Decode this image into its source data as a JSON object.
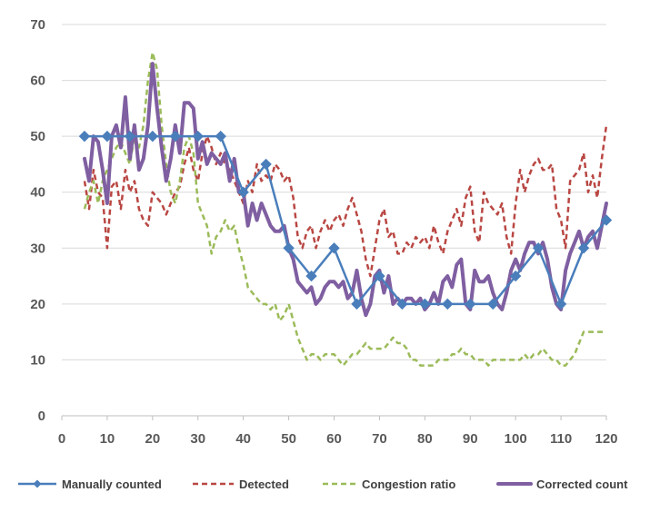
{
  "chart_data": {
    "type": "line",
    "title": "",
    "xlabel": "",
    "ylabel": "",
    "xlim": [
      0,
      120
    ],
    "ylim": [
      0,
      70
    ],
    "x_ticks": [
      0,
      10,
      20,
      30,
      40,
      50,
      60,
      70,
      80,
      90,
      100,
      110,
      120
    ],
    "y_ticks": [
      0,
      10,
      20,
      30,
      40,
      50,
      60,
      70
    ],
    "grid": "horizontal",
    "legend_position": "bottom",
    "series": [
      {
        "name": "Manually counted",
        "color": "#4a7ebb",
        "style": "solid-diamond-markers",
        "x": [
          5,
          10,
          15,
          20,
          25,
          30,
          35,
          40,
          45,
          50,
          55,
          60,
          65,
          70,
          75,
          80,
          85,
          90,
          95,
          100,
          105,
          110,
          115,
          120
        ],
        "y": [
          50,
          50,
          50,
          50,
          50,
          50,
          50,
          40,
          45,
          30,
          25,
          30,
          20,
          25,
          20,
          20,
          20,
          20,
          20,
          25,
          30,
          20,
          30,
          35
        ]
      },
      {
        "name": "Detected",
        "color": "#b94743",
        "style": "dashed",
        "x": [
          5,
          6,
          7,
          8,
          9,
          10,
          11,
          12,
          13,
          14,
          15,
          16,
          17,
          18,
          19,
          20,
          21,
          22,
          23,
          24,
          25,
          26,
          27,
          28,
          29,
          30,
          31,
          32,
          33,
          34,
          35,
          36,
          37,
          38,
          39,
          40,
          41,
          42,
          43,
          44,
          45,
          46,
          47,
          48,
          49,
          50,
          51,
          52,
          53,
          54,
          55,
          56,
          57,
          58,
          59,
          60,
          61,
          62,
          63,
          64,
          65,
          66,
          67,
          68,
          69,
          70,
          71,
          72,
          73,
          74,
          75,
          76,
          77,
          78,
          79,
          80,
          81,
          82,
          83,
          84,
          85,
          86,
          87,
          88,
          89,
          90,
          91,
          92,
          93,
          94,
          95,
          96,
          97,
          98,
          99,
          100,
          101,
          102,
          103,
          104,
          105,
          106,
          107,
          108,
          109,
          110,
          111,
          112,
          113,
          114,
          115,
          116,
          117,
          118,
          119,
          120
        ],
        "y": [
          42,
          37,
          44,
          40,
          39,
          30,
          41,
          42,
          37,
          44,
          40,
          42,
          37,
          35,
          34,
          40,
          39,
          38,
          36,
          38,
          40,
          41,
          45,
          48,
          44,
          42,
          47,
          50,
          48,
          45,
          47,
          45,
          44,
          42,
          40,
          38,
          42,
          40,
          45,
          42,
          43,
          42,
          45,
          44,
          42,
          43,
          39,
          32,
          30,
          33,
          34,
          30,
          33,
          35,
          33,
          35,
          36,
          34,
          37,
          39,
          36,
          33,
          28,
          25,
          30,
          35,
          37,
          32,
          33,
          29,
          29,
          31,
          30,
          32,
          31,
          32,
          30,
          34,
          31,
          29,
          33,
          35,
          37,
          34,
          39,
          41,
          33,
          31,
          40,
          38,
          37,
          36,
          38,
          32,
          29,
          38,
          44,
          40,
          43,
          45,
          46,
          44,
          44,
          45,
          37,
          35,
          30,
          42,
          43,
          44,
          47,
          40,
          43,
          39,
          46,
          52
        ]
      },
      {
        "name": "Congestion ratio",
        "color": "#9bbb59",
        "style": "dashed",
        "x": [
          5,
          6,
          7,
          8,
          9,
          10,
          11,
          12,
          13,
          14,
          15,
          16,
          17,
          18,
          19,
          20,
          21,
          22,
          23,
          24,
          25,
          26,
          27,
          28,
          29,
          30,
          31,
          32,
          33,
          34,
          35,
          36,
          37,
          38,
          39,
          40,
          41,
          42,
          43,
          44,
          45,
          46,
          47,
          48,
          49,
          50,
          51,
          52,
          53,
          54,
          55,
          56,
          57,
          58,
          59,
          60,
          61,
          62,
          63,
          64,
          65,
          66,
          67,
          68,
          69,
          70,
          71,
          72,
          73,
          74,
          75,
          76,
          77,
          78,
          79,
          80,
          81,
          82,
          83,
          84,
          85,
          86,
          87,
          88,
          89,
          90,
          91,
          92,
          93,
          94,
          95,
          96,
          97,
          98,
          99,
          100,
          101,
          102,
          103,
          104,
          105,
          106,
          107,
          108,
          109,
          110,
          111,
          112,
          113,
          114,
          115,
          116,
          117,
          118,
          119,
          120
        ],
        "y": [
          37,
          40,
          42,
          38,
          42,
          44,
          46,
          48,
          49,
          47,
          45,
          50,
          48,
          52,
          60,
          65,
          62,
          52,
          45,
          40,
          38,
          42,
          48,
          50,
          47,
          38,
          36,
          34,
          29,
          32,
          33,
          35,
          33,
          34,
          30,
          27,
          23,
          22,
          21,
          20,
          20,
          19,
          20,
          17,
          18,
          20,
          17,
          14,
          12,
          10,
          11,
          11,
          10,
          11,
          11,
          11,
          10,
          9,
          10,
          11,
          11,
          12,
          13,
          12,
          12,
          12,
          12,
          13,
          14,
          13,
          13,
          12,
          10,
          10,
          9,
          9,
          9,
          9,
          10,
          10,
          10,
          11,
          11,
          12,
          11,
          11,
          10,
          10,
          10,
          9,
          10,
          10,
          10,
          10,
          10,
          10,
          10,
          11,
          10,
          11,
          11,
          12,
          11,
          10,
          10,
          9,
          9,
          10,
          11,
          13,
          15,
          15,
          15,
          15,
          15,
          15
        ]
      },
      {
        "name": "Corrected count",
        "color": "#7f5fa1",
        "style": "solid-thick",
        "x": [
          5,
          6,
          7,
          8,
          9,
          10,
          11,
          12,
          13,
          14,
          15,
          16,
          17,
          18,
          19,
          20,
          21,
          22,
          23,
          24,
          25,
          26,
          27,
          28,
          29,
          30,
          31,
          32,
          33,
          34,
          35,
          36,
          37,
          38,
          39,
          40,
          41,
          42,
          43,
          44,
          45,
          46,
          47,
          48,
          49,
          50,
          51,
          52,
          53,
          54,
          55,
          56,
          57,
          58,
          59,
          60,
          61,
          62,
          63,
          64,
          65,
          66,
          67,
          68,
          69,
          70,
          71,
          72,
          73,
          74,
          75,
          76,
          77,
          78,
          79,
          80,
          81,
          82,
          83,
          84,
          85,
          86,
          87,
          88,
          89,
          90,
          91,
          92,
          93,
          94,
          95,
          96,
          97,
          98,
          99,
          100,
          101,
          102,
          103,
          104,
          105,
          106,
          107,
          108,
          109,
          110,
          111,
          112,
          113,
          114,
          115,
          116,
          117,
          118,
          119,
          120
        ],
        "y": [
          46,
          42,
          50,
          49,
          44,
          38,
          50,
          52,
          48,
          57,
          46,
          52,
          44,
          46,
          52,
          63,
          55,
          48,
          42,
          46,
          52,
          47,
          56,
          56,
          55,
          46,
          49,
          45,
          47,
          46,
          45,
          47,
          42,
          46,
          40,
          40,
          34,
          38,
          35,
          38,
          36,
          34,
          33,
          33,
          34,
          30,
          28,
          24,
          23,
          22,
          23,
          20,
          21,
          23,
          24,
          24,
          23,
          24,
          21,
          22,
          26,
          21,
          18,
          20,
          25,
          26,
          22,
          25,
          20,
          21,
          20,
          21,
          21,
          20,
          21,
          19,
          20,
          22,
          20,
          24,
          25,
          23,
          27,
          28,
          20,
          19,
          26,
          24,
          24,
          25,
          22,
          20,
          19,
          22,
          26,
          28,
          26,
          29,
          31,
          31,
          29,
          31,
          28,
          23,
          20,
          19,
          26,
          29,
          31,
          33,
          30,
          32,
          33,
          30,
          34,
          38
        ]
      }
    ]
  }
}
